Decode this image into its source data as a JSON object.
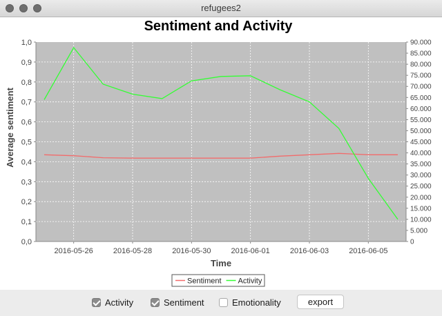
{
  "window": {
    "title": "refugees2"
  },
  "chart_data": {
    "type": "line",
    "title": "Sentiment and Activity",
    "xlabel": "Time",
    "ylabel": "Average sentiment",
    "x": [
      "2016-05-25",
      "2016-05-26",
      "2016-05-27",
      "2016-05-28",
      "2016-05-29",
      "2016-05-30",
      "2016-05-31",
      "2016-06-01",
      "2016-06-02",
      "2016-06-03",
      "2016-06-04",
      "2016-06-05",
      "2016-06-06"
    ],
    "xticks": [
      "2016-05-26",
      "2016-05-28",
      "2016-05-30",
      "2016-06-01",
      "2016-06-03",
      "2016-06-05"
    ],
    "ylim_left": [
      0,
      1
    ],
    "yticks_left": [
      "0,0",
      "0,1",
      "0,2",
      "0,3",
      "0,4",
      "0,5",
      "0,6",
      "0,7",
      "0,8",
      "0,9",
      "1,0"
    ],
    "ylim_right": [
      0,
      90000
    ],
    "yticks_right": [
      "0",
      "5.000",
      "10.000",
      "15.000",
      "20.000",
      "25.000",
      "30.000",
      "35.000",
      "40.000",
      "45.000",
      "50.000",
      "55.000",
      "60.000",
      "65.000",
      "70.000",
      "75.000",
      "80.000",
      "85.000",
      "90.000"
    ],
    "series": [
      {
        "name": "Sentiment",
        "axis": "left",
        "color": "#f26b6b",
        "values": [
          0.435,
          0.43,
          0.42,
          0.418,
          0.418,
          0.418,
          0.418,
          0.418,
          0.428,
          0.435,
          0.442,
          0.435,
          0.435
        ]
      },
      {
        "name": "Activity",
        "axis": "right",
        "color": "#33ff33",
        "values": [
          64000,
          87500,
          71000,
          66500,
          64500,
          72500,
          74500,
          74800,
          68500,
          63000,
          51000,
          28500,
          10000
        ]
      }
    ],
    "grid": true,
    "legend_position": "bottom-center",
    "plot_background": "#c0c0c0"
  },
  "controls": {
    "activity": {
      "label": "Activity",
      "checked": true
    },
    "sentiment": {
      "label": "Sentiment",
      "checked": true
    },
    "emotionality": {
      "label": "Emotionality",
      "checked": false
    },
    "export_label": "export"
  }
}
